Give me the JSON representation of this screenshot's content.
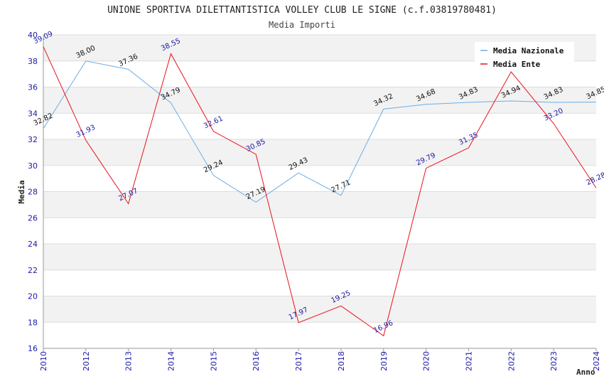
{
  "chart_data": {
    "type": "line",
    "title": "UNIONE SPORTIVA DILETTANTISTICA VOLLEY CLUB LE SIGNE (c.f.03819780481)",
    "subtitle": "Media Importi",
    "xlabel": "Anno",
    "ylabel": "Media",
    "categories": [
      "2010",
      "2012",
      "2013",
      "2014",
      "2015",
      "2016",
      "2017",
      "2018",
      "2019",
      "2020",
      "2021",
      "2022",
      "2023",
      "2024"
    ],
    "ylim": [
      16,
      40
    ],
    "yticks": [
      16,
      18,
      20,
      22,
      24,
      26,
      28,
      30,
      32,
      34,
      36,
      38,
      40
    ],
    "grid": true,
    "legend_position": "top-right",
    "series": [
      {
        "name": "Media Nazionale",
        "color": "#6aaee8",
        "label_color": "#111111",
        "values": [
          32.82,
          38.0,
          37.36,
          34.79,
          29.24,
          27.19,
          29.43,
          27.71,
          34.32,
          34.68,
          34.83,
          34.94,
          34.83,
          34.85
        ]
      },
      {
        "name": "Media Ente",
        "color": "#e8121c",
        "label_color": "#1a1aa6",
        "values": [
          39.09,
          31.93,
          27.07,
          38.55,
          32.61,
          30.85,
          17.97,
          19.25,
          16.96,
          29.79,
          31.35,
          37.17,
          33.2,
          28.28
        ]
      }
    ]
  }
}
